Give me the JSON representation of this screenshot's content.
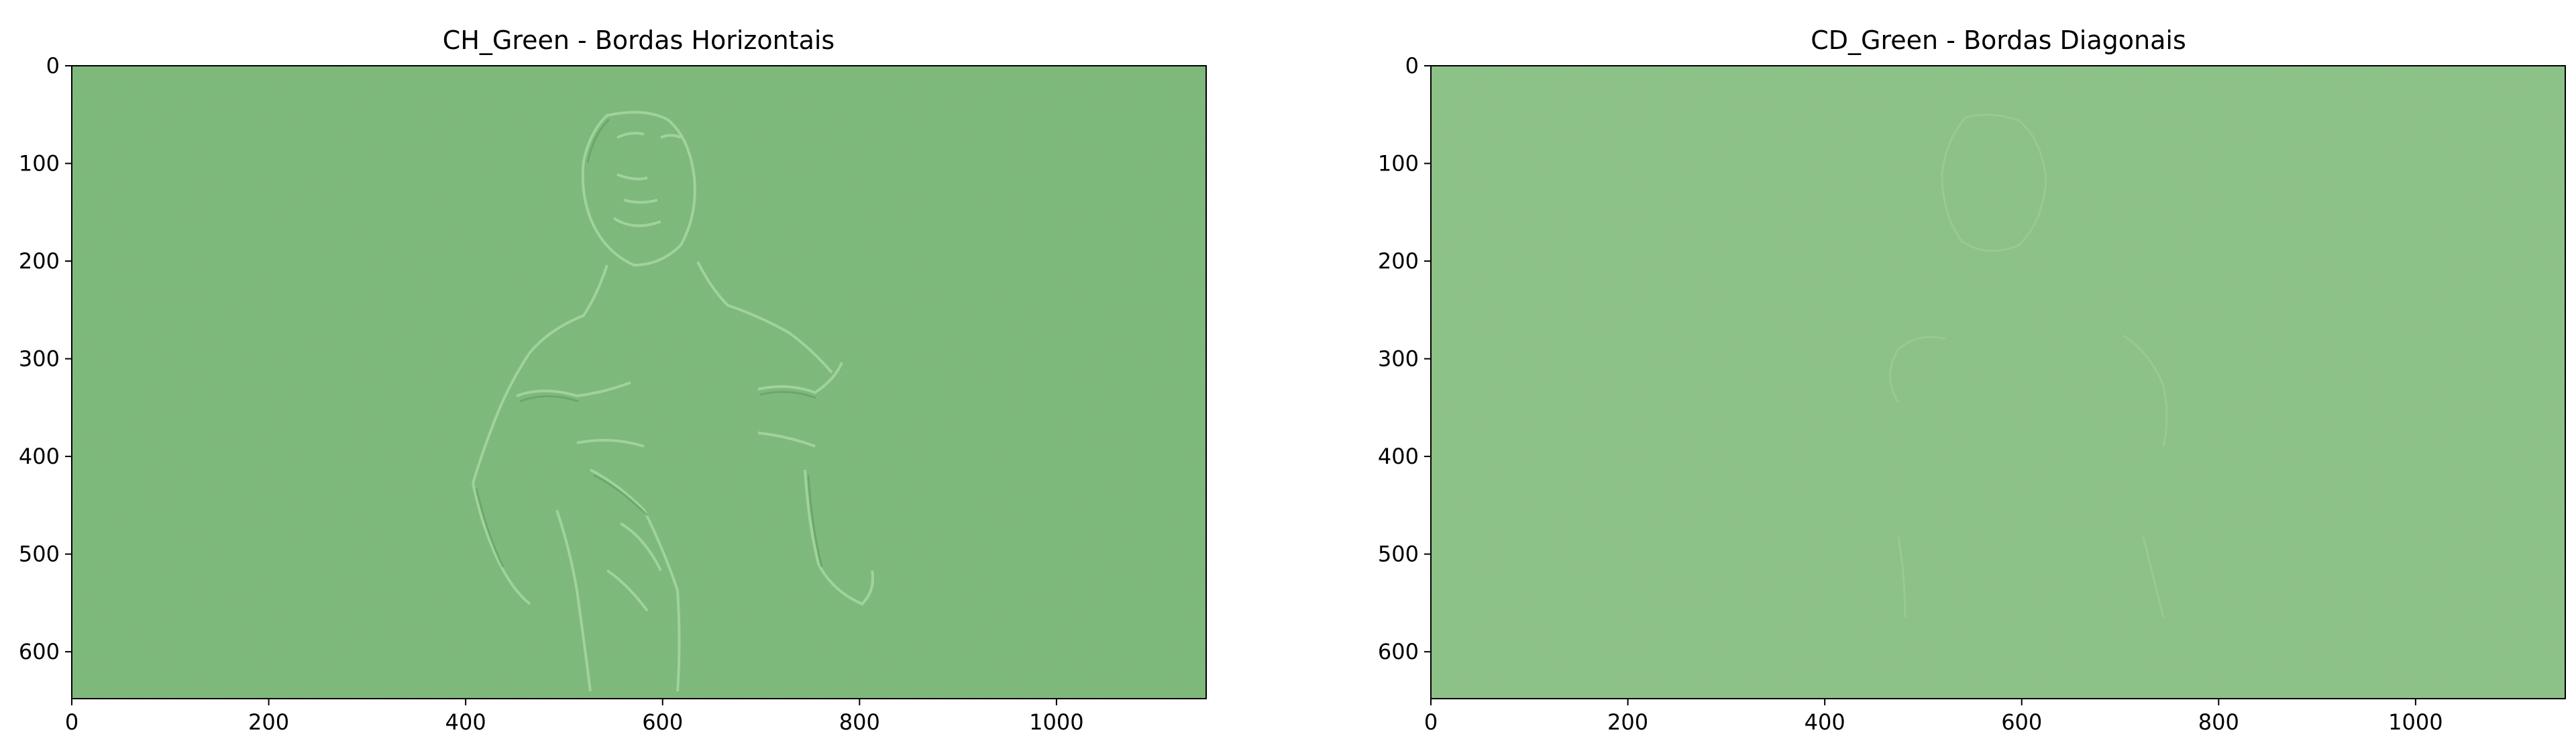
{
  "chart_data": [
    {
      "type": "heatmap",
      "title": "CH_Green - Bordas Horizontais",
      "xlabel": "",
      "ylabel": "",
      "xlim": [
        0,
        1152
      ],
      "ylim": [
        648,
        0
      ],
      "xticks": [
        0,
        200,
        400,
        600,
        800,
        1000
      ],
      "yticks": [
        0,
        100,
        200,
        300,
        400,
        500,
        600
      ],
      "colormap": "Greens (single channel shown as green image)",
      "background_color": "#7bb978",
      "grid": false,
      "legend": "none"
    },
    {
      "type": "heatmap",
      "title": "CD_Green - Bordas Diagonais",
      "xlabel": "",
      "ylabel": "",
      "xlim": [
        0,
        1152
      ],
      "ylim": [
        648,
        0
      ],
      "xticks": [
        0,
        200,
        400,
        600,
        800,
        1000
      ],
      "yticks": [
        0,
        100,
        200,
        300,
        400,
        500,
        600
      ],
      "colormap": "Greens (single channel shown as green image)",
      "background_color": "#89c283",
      "grid": false,
      "legend": "none"
    }
  ]
}
